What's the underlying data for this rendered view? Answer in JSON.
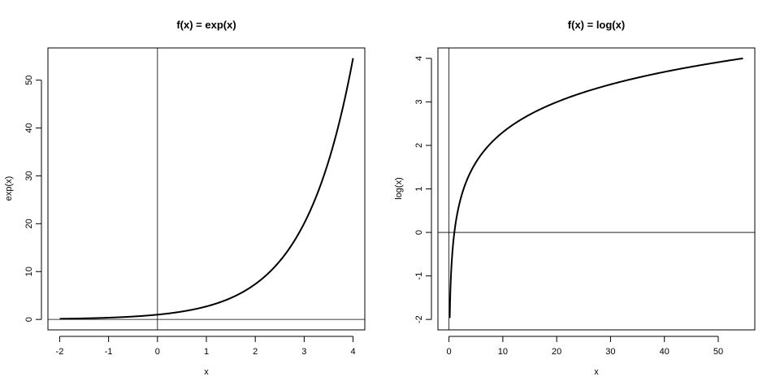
{
  "chart_data": [
    {
      "type": "line",
      "title": "f(x) = exp(x)",
      "xlabel": "x",
      "ylabel": "exp(x)",
      "function": "exp",
      "xlim": [
        -2.24,
        4.24
      ],
      "ylim": [
        -2.18,
        56.73
      ],
      "x_ticks": [
        -2,
        -1,
        0,
        1,
        2,
        3,
        4
      ],
      "x_tick_labels": [
        "-2",
        "-1",
        "0",
        "1",
        "2",
        "3",
        "4"
      ],
      "y_ticks": [
        0,
        10,
        20,
        30,
        40,
        50
      ],
      "y_tick_labels": [
        "0",
        "10",
        "20",
        "30",
        "40",
        "50"
      ],
      "reference_lines": {
        "h": 0,
        "v": 0
      },
      "grid": false,
      "series": [
        {
          "x": [
            -2,
            -1.5,
            -1,
            -0.5,
            0,
            0.5,
            1,
            1.5,
            2,
            2.5,
            3,
            3.25,
            3.5,
            3.75,
            4
          ],
          "values": [
            0.14,
            0.22,
            0.37,
            0.61,
            1.0,
            1.65,
            2.72,
            4.48,
            7.39,
            12.18,
            20.09,
            25.79,
            33.12,
            42.52,
            54.6
          ]
        }
      ]
    },
    {
      "type": "line",
      "title": "f(x) = log(x)",
      "xlabel": "x",
      "ylabel": "log(x)",
      "function": "log",
      "xlim": [
        -2.05,
        56.79
      ],
      "ylim": [
        -2.24,
        4.24
      ],
      "x_ticks": [
        0,
        10,
        20,
        30,
        40,
        50
      ],
      "x_tick_labels": [
        "0",
        "10",
        "20",
        "30",
        "40",
        "50"
      ],
      "y_ticks": [
        -2,
        -1,
        0,
        1,
        2,
        3,
        4
      ],
      "y_tick_labels": [
        "-2",
        "-1",
        "0",
        "1",
        "2",
        "3",
        "4"
      ],
      "reference_lines": {
        "h": 0,
        "v": 0
      },
      "grid": false,
      "series": [
        {
          "x": [
            0.14,
            0.25,
            0.5,
            1,
            2,
            3,
            5,
            7.5,
            10,
            15,
            20,
            30,
            40,
            54.6
          ],
          "values": [
            -2.0,
            -1.39,
            -0.69,
            0.0,
            0.69,
            1.1,
            1.61,
            2.01,
            2.3,
            2.71,
            3.0,
            3.4,
            3.69,
            4.0
          ]
        }
      ]
    }
  ]
}
